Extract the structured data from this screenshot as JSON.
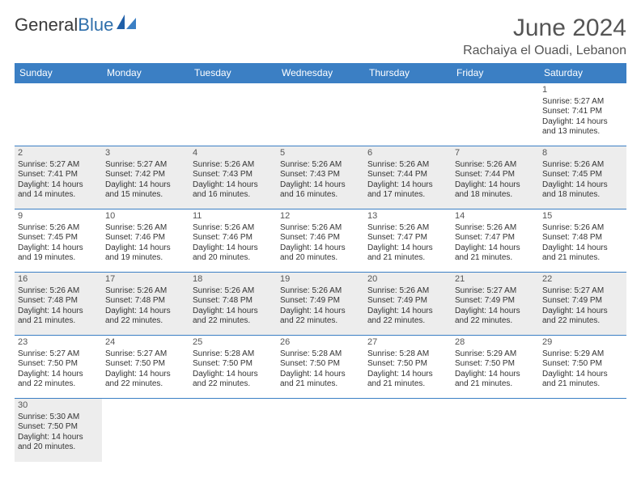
{
  "logo": {
    "word1": "General",
    "word2": "Blue"
  },
  "title": "June 2024",
  "location": "Rachaiya el Ouadi, Lebanon",
  "colors": {
    "header_bg": "#3b7fc4",
    "header_text": "#ffffff",
    "shaded_row": "#ededed",
    "text": "#333333",
    "title_text": "#555555",
    "logo_blue": "#2f6fab"
  },
  "weekdays": [
    "Sunday",
    "Monday",
    "Tuesday",
    "Wednesday",
    "Thursday",
    "Friday",
    "Saturday"
  ],
  "weeks": [
    {
      "shaded": false,
      "days": [
        null,
        null,
        null,
        null,
        null,
        null,
        {
          "n": "1",
          "sunrise": "Sunrise: 5:27 AM",
          "sunset": "Sunset: 7:41 PM",
          "dl1": "Daylight: 14 hours",
          "dl2": "and 13 minutes."
        }
      ]
    },
    {
      "shaded": true,
      "days": [
        {
          "n": "2",
          "sunrise": "Sunrise: 5:27 AM",
          "sunset": "Sunset: 7:41 PM",
          "dl1": "Daylight: 14 hours",
          "dl2": "and 14 minutes."
        },
        {
          "n": "3",
          "sunrise": "Sunrise: 5:27 AM",
          "sunset": "Sunset: 7:42 PM",
          "dl1": "Daylight: 14 hours",
          "dl2": "and 15 minutes."
        },
        {
          "n": "4",
          "sunrise": "Sunrise: 5:26 AM",
          "sunset": "Sunset: 7:43 PM",
          "dl1": "Daylight: 14 hours",
          "dl2": "and 16 minutes."
        },
        {
          "n": "5",
          "sunrise": "Sunrise: 5:26 AM",
          "sunset": "Sunset: 7:43 PM",
          "dl1": "Daylight: 14 hours",
          "dl2": "and 16 minutes."
        },
        {
          "n": "6",
          "sunrise": "Sunrise: 5:26 AM",
          "sunset": "Sunset: 7:44 PM",
          "dl1": "Daylight: 14 hours",
          "dl2": "and 17 minutes."
        },
        {
          "n": "7",
          "sunrise": "Sunrise: 5:26 AM",
          "sunset": "Sunset: 7:44 PM",
          "dl1": "Daylight: 14 hours",
          "dl2": "and 18 minutes."
        },
        {
          "n": "8",
          "sunrise": "Sunrise: 5:26 AM",
          "sunset": "Sunset: 7:45 PM",
          "dl1": "Daylight: 14 hours",
          "dl2": "and 18 minutes."
        }
      ]
    },
    {
      "shaded": false,
      "days": [
        {
          "n": "9",
          "sunrise": "Sunrise: 5:26 AM",
          "sunset": "Sunset: 7:45 PM",
          "dl1": "Daylight: 14 hours",
          "dl2": "and 19 minutes."
        },
        {
          "n": "10",
          "sunrise": "Sunrise: 5:26 AM",
          "sunset": "Sunset: 7:46 PM",
          "dl1": "Daylight: 14 hours",
          "dl2": "and 19 minutes."
        },
        {
          "n": "11",
          "sunrise": "Sunrise: 5:26 AM",
          "sunset": "Sunset: 7:46 PM",
          "dl1": "Daylight: 14 hours",
          "dl2": "and 20 minutes."
        },
        {
          "n": "12",
          "sunrise": "Sunrise: 5:26 AM",
          "sunset": "Sunset: 7:46 PM",
          "dl1": "Daylight: 14 hours",
          "dl2": "and 20 minutes."
        },
        {
          "n": "13",
          "sunrise": "Sunrise: 5:26 AM",
          "sunset": "Sunset: 7:47 PM",
          "dl1": "Daylight: 14 hours",
          "dl2": "and 21 minutes."
        },
        {
          "n": "14",
          "sunrise": "Sunrise: 5:26 AM",
          "sunset": "Sunset: 7:47 PM",
          "dl1": "Daylight: 14 hours",
          "dl2": "and 21 minutes."
        },
        {
          "n": "15",
          "sunrise": "Sunrise: 5:26 AM",
          "sunset": "Sunset: 7:48 PM",
          "dl1": "Daylight: 14 hours",
          "dl2": "and 21 minutes."
        }
      ]
    },
    {
      "shaded": true,
      "days": [
        {
          "n": "16",
          "sunrise": "Sunrise: 5:26 AM",
          "sunset": "Sunset: 7:48 PM",
          "dl1": "Daylight: 14 hours",
          "dl2": "and 21 minutes."
        },
        {
          "n": "17",
          "sunrise": "Sunrise: 5:26 AM",
          "sunset": "Sunset: 7:48 PM",
          "dl1": "Daylight: 14 hours",
          "dl2": "and 22 minutes."
        },
        {
          "n": "18",
          "sunrise": "Sunrise: 5:26 AM",
          "sunset": "Sunset: 7:48 PM",
          "dl1": "Daylight: 14 hours",
          "dl2": "and 22 minutes."
        },
        {
          "n": "19",
          "sunrise": "Sunrise: 5:26 AM",
          "sunset": "Sunset: 7:49 PM",
          "dl1": "Daylight: 14 hours",
          "dl2": "and 22 minutes."
        },
        {
          "n": "20",
          "sunrise": "Sunrise: 5:26 AM",
          "sunset": "Sunset: 7:49 PM",
          "dl1": "Daylight: 14 hours",
          "dl2": "and 22 minutes."
        },
        {
          "n": "21",
          "sunrise": "Sunrise: 5:27 AM",
          "sunset": "Sunset: 7:49 PM",
          "dl1": "Daylight: 14 hours",
          "dl2": "and 22 minutes."
        },
        {
          "n": "22",
          "sunrise": "Sunrise: 5:27 AM",
          "sunset": "Sunset: 7:49 PM",
          "dl1": "Daylight: 14 hours",
          "dl2": "and 22 minutes."
        }
      ]
    },
    {
      "shaded": false,
      "days": [
        {
          "n": "23",
          "sunrise": "Sunrise: 5:27 AM",
          "sunset": "Sunset: 7:50 PM",
          "dl1": "Daylight: 14 hours",
          "dl2": "and 22 minutes."
        },
        {
          "n": "24",
          "sunrise": "Sunrise: 5:27 AM",
          "sunset": "Sunset: 7:50 PM",
          "dl1": "Daylight: 14 hours",
          "dl2": "and 22 minutes."
        },
        {
          "n": "25",
          "sunrise": "Sunrise: 5:28 AM",
          "sunset": "Sunset: 7:50 PM",
          "dl1": "Daylight: 14 hours",
          "dl2": "and 22 minutes."
        },
        {
          "n": "26",
          "sunrise": "Sunrise: 5:28 AM",
          "sunset": "Sunset: 7:50 PM",
          "dl1": "Daylight: 14 hours",
          "dl2": "and 21 minutes."
        },
        {
          "n": "27",
          "sunrise": "Sunrise: 5:28 AM",
          "sunset": "Sunset: 7:50 PM",
          "dl1": "Daylight: 14 hours",
          "dl2": "and 21 minutes."
        },
        {
          "n": "28",
          "sunrise": "Sunrise: 5:29 AM",
          "sunset": "Sunset: 7:50 PM",
          "dl1": "Daylight: 14 hours",
          "dl2": "and 21 minutes."
        },
        {
          "n": "29",
          "sunrise": "Sunrise: 5:29 AM",
          "sunset": "Sunset: 7:50 PM",
          "dl1": "Daylight: 14 hours",
          "dl2": "and 21 minutes."
        }
      ]
    },
    {
      "shaded": true,
      "days": [
        {
          "n": "30",
          "sunrise": "Sunrise: 5:30 AM",
          "sunset": "Sunset: 7:50 PM",
          "dl1": "Daylight: 14 hours",
          "dl2": "and 20 minutes."
        },
        null,
        null,
        null,
        null,
        null,
        null
      ]
    }
  ]
}
